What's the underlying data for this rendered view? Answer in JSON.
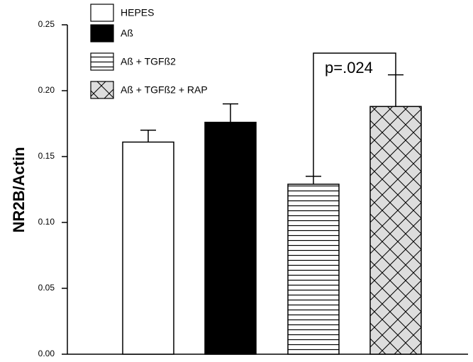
{
  "chart_data": {
    "type": "bar",
    "y_label": "NR2B/Actin",
    "annotation": "p=.024",
    "ylim": [
      0,
      0.25
    ],
    "yticks": [
      {
        "value": 0,
        "label": "0.00"
      },
      {
        "value": 0.05,
        "label": "0.05"
      },
      {
        "value": 0.1,
        "label": "0.10"
      },
      {
        "value": 0.15,
        "label": "0.15"
      },
      {
        "value": 0.2,
        "label": "0.20"
      },
      {
        "value": 0.25,
        "label": "0.25"
      }
    ],
    "series": [
      {
        "name": "HEPES",
        "color": "#ffffff",
        "pattern": "none",
        "values": [
          0.161
        ],
        "errors": [
          0.009
        ]
      },
      {
        "name": "Aß",
        "color": "#000000",
        "pattern": "none",
        "values": [
          0.176
        ],
        "errors": [
          0.014
        ]
      },
      {
        "name": "Aß + TGFß2",
        "color": "#ffffff",
        "pattern": "horizontal",
        "values": [
          0.129
        ],
        "errors": [
          0.006
        ]
      },
      {
        "name": "Aß + TGFß2 + RAP",
        "color": "#dddddd",
        "pattern": "crosshatch",
        "values": [
          0.188
        ],
        "errors": [
          0.024
        ]
      }
    ]
  }
}
